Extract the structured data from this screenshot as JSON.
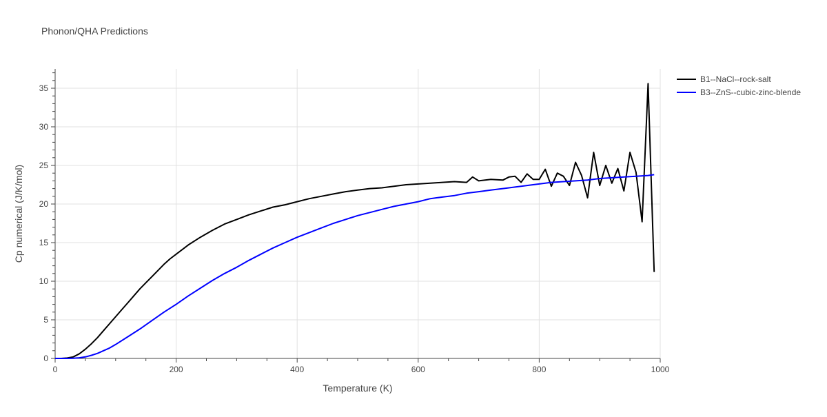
{
  "chart_data": {
    "type": "line",
    "title": "Phonon/QHA Predictions",
    "xlabel": "Temperature (K)",
    "ylabel": "Cp numerical (J/K/mol)",
    "xlim": [
      0,
      1000
    ],
    "ylim": [
      0,
      37.5
    ],
    "x_ticks": [
      0,
      200,
      400,
      600,
      800,
      1000
    ],
    "y_ticks": [
      0,
      5,
      10,
      15,
      20,
      25,
      30,
      35
    ],
    "grid": true,
    "legend_position": "top-right",
    "series": [
      {
        "name": "B1--NaCl--rock-salt",
        "color": "#000000",
        "x": [
          0,
          10,
          20,
          30,
          40,
          50,
          60,
          70,
          80,
          90,
          100,
          110,
          120,
          130,
          140,
          150,
          160,
          170,
          180,
          190,
          200,
          220,
          240,
          260,
          280,
          300,
          320,
          340,
          360,
          380,
          400,
          420,
          440,
          460,
          480,
          500,
          520,
          540,
          560,
          580,
          600,
          620,
          640,
          660,
          680,
          690,
          700,
          720,
          740,
          750,
          760,
          770,
          780,
          790,
          800,
          810,
          820,
          830,
          840,
          850,
          860,
          870,
          880,
          890,
          900,
          910,
          920,
          930,
          940,
          950,
          960,
          970,
          980,
          990
        ],
        "y": [
          0,
          0,
          0.05,
          0.2,
          0.6,
          1.2,
          1.9,
          2.7,
          3.6,
          4.5,
          5.4,
          6.3,
          7.2,
          8.1,
          9.0,
          9.8,
          10.6,
          11.4,
          12.2,
          12.9,
          13.5,
          14.7,
          15.7,
          16.6,
          17.4,
          18.0,
          18.6,
          19.1,
          19.6,
          19.9,
          20.3,
          20.7,
          21.0,
          21.3,
          21.6,
          21.8,
          22.0,
          22.1,
          22.3,
          22.5,
          22.6,
          22.7,
          22.8,
          22.9,
          22.8,
          23.5,
          23.0,
          23.2,
          23.1,
          23.5,
          23.6,
          22.8,
          23.9,
          23.2,
          23.2,
          24.5,
          22.3,
          24.0,
          23.6,
          22.4,
          25.4,
          23.7,
          20.8,
          26.7,
          22.4,
          25.0,
          22.7,
          24.6,
          21.7,
          26.7,
          24.1,
          17.7,
          35.6,
          11.2
        ]
      },
      {
        "name": "B3--ZnS--cubic-zinc-blende",
        "color": "#0000ff",
        "x": [
          0,
          10,
          20,
          30,
          40,
          50,
          60,
          70,
          80,
          90,
          100,
          120,
          140,
          160,
          180,
          200,
          220,
          240,
          260,
          280,
          300,
          320,
          340,
          360,
          380,
          400,
          420,
          440,
          460,
          480,
          500,
          520,
          540,
          560,
          580,
          600,
          620,
          640,
          660,
          680,
          700,
          720,
          740,
          760,
          780,
          800,
          820,
          840,
          860,
          880,
          900,
          920,
          940,
          960,
          980,
          990
        ],
        "y": [
          0,
          0,
          0,
          0.02,
          0.08,
          0.2,
          0.4,
          0.65,
          1.0,
          1.35,
          1.8,
          2.8,
          3.8,
          4.9,
          6.0,
          7.0,
          8.1,
          9.1,
          10.1,
          11.0,
          11.8,
          12.7,
          13.5,
          14.3,
          15.0,
          15.7,
          16.3,
          16.9,
          17.5,
          18.0,
          18.5,
          18.9,
          19.3,
          19.7,
          20.0,
          20.3,
          20.7,
          20.9,
          21.1,
          21.4,
          21.6,
          21.8,
          22.0,
          22.2,
          22.4,
          22.6,
          22.8,
          22.9,
          23.0,
          23.1,
          23.3,
          23.4,
          23.5,
          23.6,
          23.7,
          23.8
        ]
      }
    ]
  }
}
